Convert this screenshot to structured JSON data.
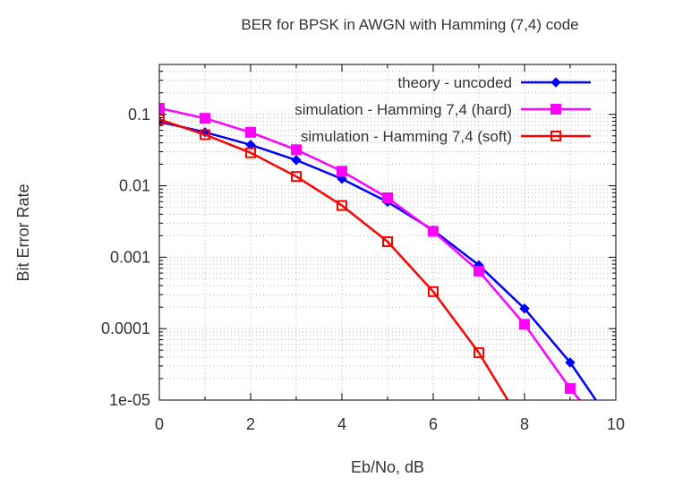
{
  "chart_data": {
    "type": "line",
    "title": "BER for BPSK in AWGN with Hamming (7,4) code",
    "xlabel": "Eb/No, dB",
    "ylabel": "Bit Error Rate",
    "xlim": [
      0,
      10
    ],
    "ylim": [
      1e-05,
      0.5
    ],
    "yscale": "log",
    "grid": true,
    "legend_position": "top-right",
    "x_ticks": [
      0,
      2,
      4,
      6,
      8,
      10
    ],
    "x_tick_labels": [
      "0",
      "2",
      "4",
      "6",
      "8",
      "10"
    ],
    "y_ticks": [
      0.1,
      0.01,
      0.001,
      0.0001,
      1e-05
    ],
    "y_tick_labels": [
      "0.1",
      "0.01",
      "0.001",
      "0.0001",
      "1e-05"
    ],
    "series": [
      {
        "name": "theory - uncoded",
        "color": "#0000ff",
        "marker": "diamond",
        "x": [
          0,
          1,
          2,
          3,
          4,
          5,
          6,
          7,
          8,
          9,
          10
        ],
        "values": [
          0.0786,
          0.0563,
          0.0375,
          0.0229,
          0.0125,
          0.00595,
          0.00239,
          0.000773,
          0.000191,
          3.36e-05,
          3.9e-06
        ],
        "marker_x": [
          0,
          1,
          2,
          3,
          4,
          5,
          6,
          7,
          8,
          9
        ],
        "marker_values": [
          0.0786,
          0.0563,
          0.0375,
          0.0229,
          0.0125,
          0.00595,
          0.00239,
          0.000773,
          0.000191,
          3.36e-05
        ]
      },
      {
        "name": "simulation - Hamming 7,4 (hard)",
        "color": "#ff00ff",
        "marker": "filled-square",
        "x": [
          0,
          1,
          2,
          3,
          4,
          5,
          6,
          7,
          8,
          9,
          9.3
        ],
        "values": [
          0.122,
          0.088,
          0.056,
          0.032,
          0.016,
          0.0068,
          0.0023,
          0.00064,
          0.000115,
          1.45e-05,
          8.5e-06
        ],
        "marker_x": [
          0,
          1,
          2,
          3,
          4,
          5,
          6,
          7,
          8,
          9
        ],
        "marker_values": [
          0.122,
          0.088,
          0.056,
          0.032,
          0.016,
          0.0068,
          0.0023,
          0.00064,
          0.000115,
          1.45e-05
        ]
      },
      {
        "name": "simulation - Hamming 7,4 (soft)",
        "color": "#ff0000",
        "marker": "open-square",
        "x": [
          0,
          1,
          2,
          3,
          4,
          5,
          6,
          7,
          7.7
        ],
        "values": [
          0.085,
          0.052,
          0.029,
          0.0135,
          0.0053,
          0.00165,
          0.00033,
          4.6e-05,
          8.5e-06
        ],
        "marker_x": [
          0,
          1,
          2,
          3,
          4,
          5,
          6,
          7
        ],
        "marker_values": [
          0.085,
          0.052,
          0.029,
          0.0135,
          0.0053,
          0.00165,
          0.00033,
          4.6e-05
        ]
      }
    ]
  }
}
